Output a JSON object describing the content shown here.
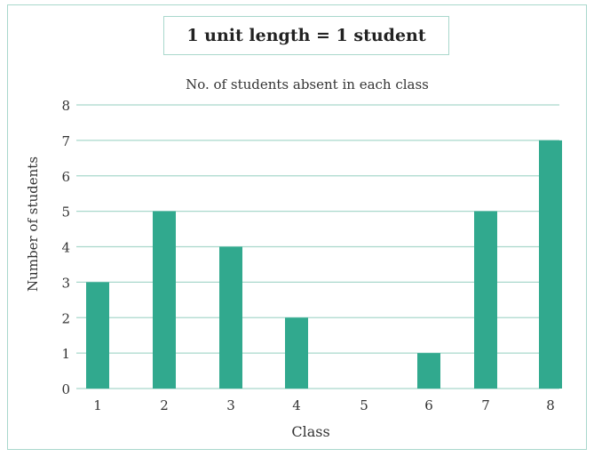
{
  "unit_note": "1 unit length = 1 student",
  "chart_data": {
    "type": "bar",
    "title": "No. of students absent in each class",
    "xlabel": "Class",
    "ylabel": "Number of students",
    "categories": [
      "1",
      "2",
      "3",
      "4",
      "5",
      "6",
      "7",
      "8"
    ],
    "values": [
      3,
      5,
      4,
      2,
      0,
      1,
      5,
      7
    ],
    "yticks": [
      "0",
      "1",
      "2",
      "3",
      "4",
      "5",
      "6",
      "7",
      "8"
    ],
    "ylim": [
      0,
      8
    ],
    "grid": true,
    "legend": "none",
    "bar_color": "#31a98e",
    "grid_color": "#a9d8cc"
  }
}
